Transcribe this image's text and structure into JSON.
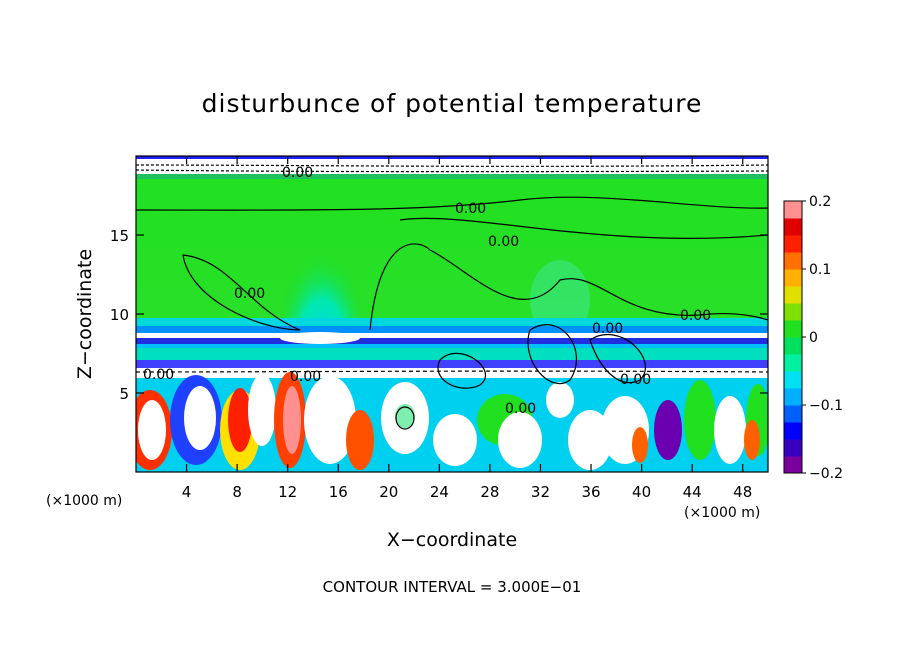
{
  "chart_data": {
    "type": "heatmap",
    "title": "disturbunce of potential temperature",
    "xlabel": "X−coordinate",
    "ylabel": "Z−coordinate",
    "x_unit_left": "(×1000 m)",
    "x_unit_right": "(×1000 m)",
    "xlim": [
      0,
      50
    ],
    "ylim": [
      0,
      20
    ],
    "xticks": [
      "4",
      "8",
      "12",
      "16",
      "20",
      "24",
      "28",
      "32",
      "36",
      "40",
      "44",
      "48"
    ],
    "yticks": [
      "5",
      "10",
      "15"
    ],
    "colorbar": {
      "range": [
        -0.2,
        0.2
      ],
      "tick_labels": [
        "0.2",
        "0.1",
        "0",
        "−0.1",
        "−0.2"
      ],
      "colors": [
        "#7a009e",
        "#3a00c0",
        "#0000ff",
        "#0060ff",
        "#00b0ff",
        "#00e0f0",
        "#00f0a0",
        "#00e060",
        "#20e020",
        "#80e000",
        "#e0e000",
        "#ffb000",
        "#ff7000",
        "#ff2000",
        "#e00000",
        "#ff9090"
      ]
    },
    "contour_labels": [
      "0.00",
      "0.00",
      "0.00",
      "0.00",
      "0.00",
      "0.00",
      "0.00",
      "0.00",
      "0.00",
      "0.00"
    ],
    "footer": "CONTOUR INTERVAL = 3.000E−01"
  }
}
